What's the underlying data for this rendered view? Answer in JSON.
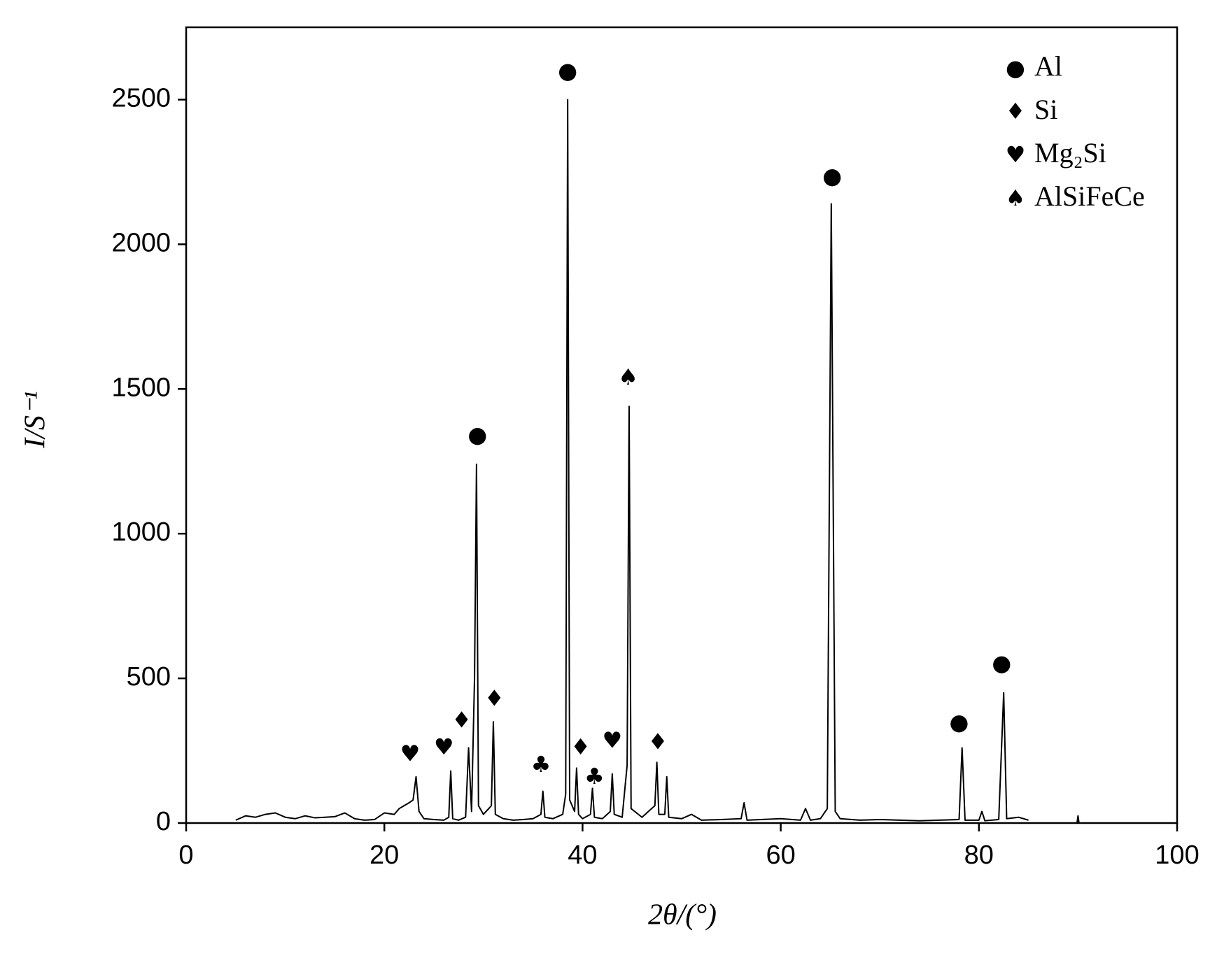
{
  "chart_data": {
    "type": "line",
    "x_label": "2θ/(°)",
    "y_label": "I/S⁻¹",
    "xlim": [
      0,
      100
    ],
    "ylim": [
      0,
      2750
    ],
    "xticks": [
      0,
      20,
      40,
      60,
      80,
      100
    ],
    "yticks": [
      0,
      500,
      1000,
      1500,
      2000,
      2500
    ],
    "grid": false,
    "color": "#000000",
    "x": [
      5,
      6,
      7,
      8,
      9,
      10,
      11,
      12,
      13,
      14,
      15,
      16,
      17,
      18,
      19,
      20,
      21,
      21.5,
      22,
      22.5,
      22.9,
      23.2,
      23.5,
      24,
      25,
      26,
      26.5,
      26.7,
      26.9,
      27.5,
      28.2,
      28.5,
      28.8,
      29.1,
      29.3,
      29.5,
      30,
      30.8,
      31.0,
      31.2,
      32,
      33,
      34,
      35,
      35.8,
      36.0,
      36.2,
      37,
      38,
      38.3,
      38.5,
      38.7,
      39.2,
      39.4,
      39.6,
      40,
      40.8,
      41.0,
      41.2,
      42,
      42.8,
      43.0,
      43.2,
      44,
      44.5,
      44.7,
      44.9,
      46,
      47.3,
      47.5,
      47.7,
      48.3,
      48.5,
      48.7,
      50,
      51,
      52,
      54,
      56,
      56.3,
      56.6,
      58,
      60,
      62,
      62.5,
      63,
      64,
      64.7,
      65.1,
      65.5,
      66,
      68,
      70,
      72,
      74,
      76,
      78,
      78.3,
      78.6,
      80,
      80.3,
      80.6,
      82,
      82.5,
      82.8,
      84,
      85,
      87,
      89.9,
      90,
      90.1
    ],
    "values": [
      10,
      25,
      20,
      30,
      35,
      20,
      15,
      25,
      18,
      20,
      22,
      35,
      15,
      10,
      12,
      35,
      30,
      50,
      60,
      70,
      80,
      160,
      40,
      15,
      12,
      10,
      20,
      180,
      15,
      10,
      20,
      260,
      40,
      500,
      1240,
      60,
      30,
      60,
      350,
      30,
      15,
      10,
      12,
      15,
      30,
      110,
      20,
      15,
      30,
      100,
      2500,
      80,
      40,
      190,
      30,
      15,
      30,
      120,
      20,
      15,
      40,
      170,
      30,
      20,
      200,
      1440,
      50,
      20,
      60,
      210,
      30,
      30,
      160,
      20,
      15,
      30,
      10,
      12,
      15,
      70,
      10,
      12,
      15,
      10,
      50,
      10,
      15,
      50,
      2140,
      40,
      15,
      10,
      12,
      10,
      8,
      10,
      12,
      260,
      10,
      10,
      40,
      8,
      12,
      450,
      15,
      20,
      10,
      null,
      0,
      25,
      0
    ],
    "annotations": [
      {
        "x": 38.5,
        "y": 2595,
        "symbol": "●"
      },
      {
        "x": 29.4,
        "y": 1337,
        "symbol": "●"
      },
      {
        "x": 65.2,
        "y": 2232,
        "symbol": "●"
      },
      {
        "x": 78.0,
        "y": 344,
        "symbol": "●"
      },
      {
        "x": 82.3,
        "y": 548,
        "symbol": "●"
      },
      {
        "x": 44.6,
        "y": 1537,
        "symbol": "♠"
      },
      {
        "x": 27.8,
        "y": 352,
        "symbol": "♦"
      },
      {
        "x": 31.1,
        "y": 426,
        "symbol": "♦"
      },
      {
        "x": 39.8,
        "y": 258,
        "symbol": "♦"
      },
      {
        "x": 47.6,
        "y": 277,
        "symbol": "♦"
      },
      {
        "x": 22.6,
        "y": 236,
        "symbol": "♥"
      },
      {
        "x": 26.0,
        "y": 258,
        "symbol": "♥"
      },
      {
        "x": 43.0,
        "y": 282,
        "symbol": "♥"
      },
      {
        "x": 35.8,
        "y": 198,
        "symbol": "♣"
      },
      {
        "x": 41.2,
        "y": 157,
        "symbol": "♣"
      }
    ],
    "legend": [
      {
        "symbol": "●",
        "label": "Al"
      },
      {
        "symbol": "♦",
        "label": "Si"
      },
      {
        "symbol": "♥",
        "label": "Mg₂Si"
      },
      {
        "symbol": "♠",
        "label": "AlSiFeCe"
      }
    ]
  }
}
